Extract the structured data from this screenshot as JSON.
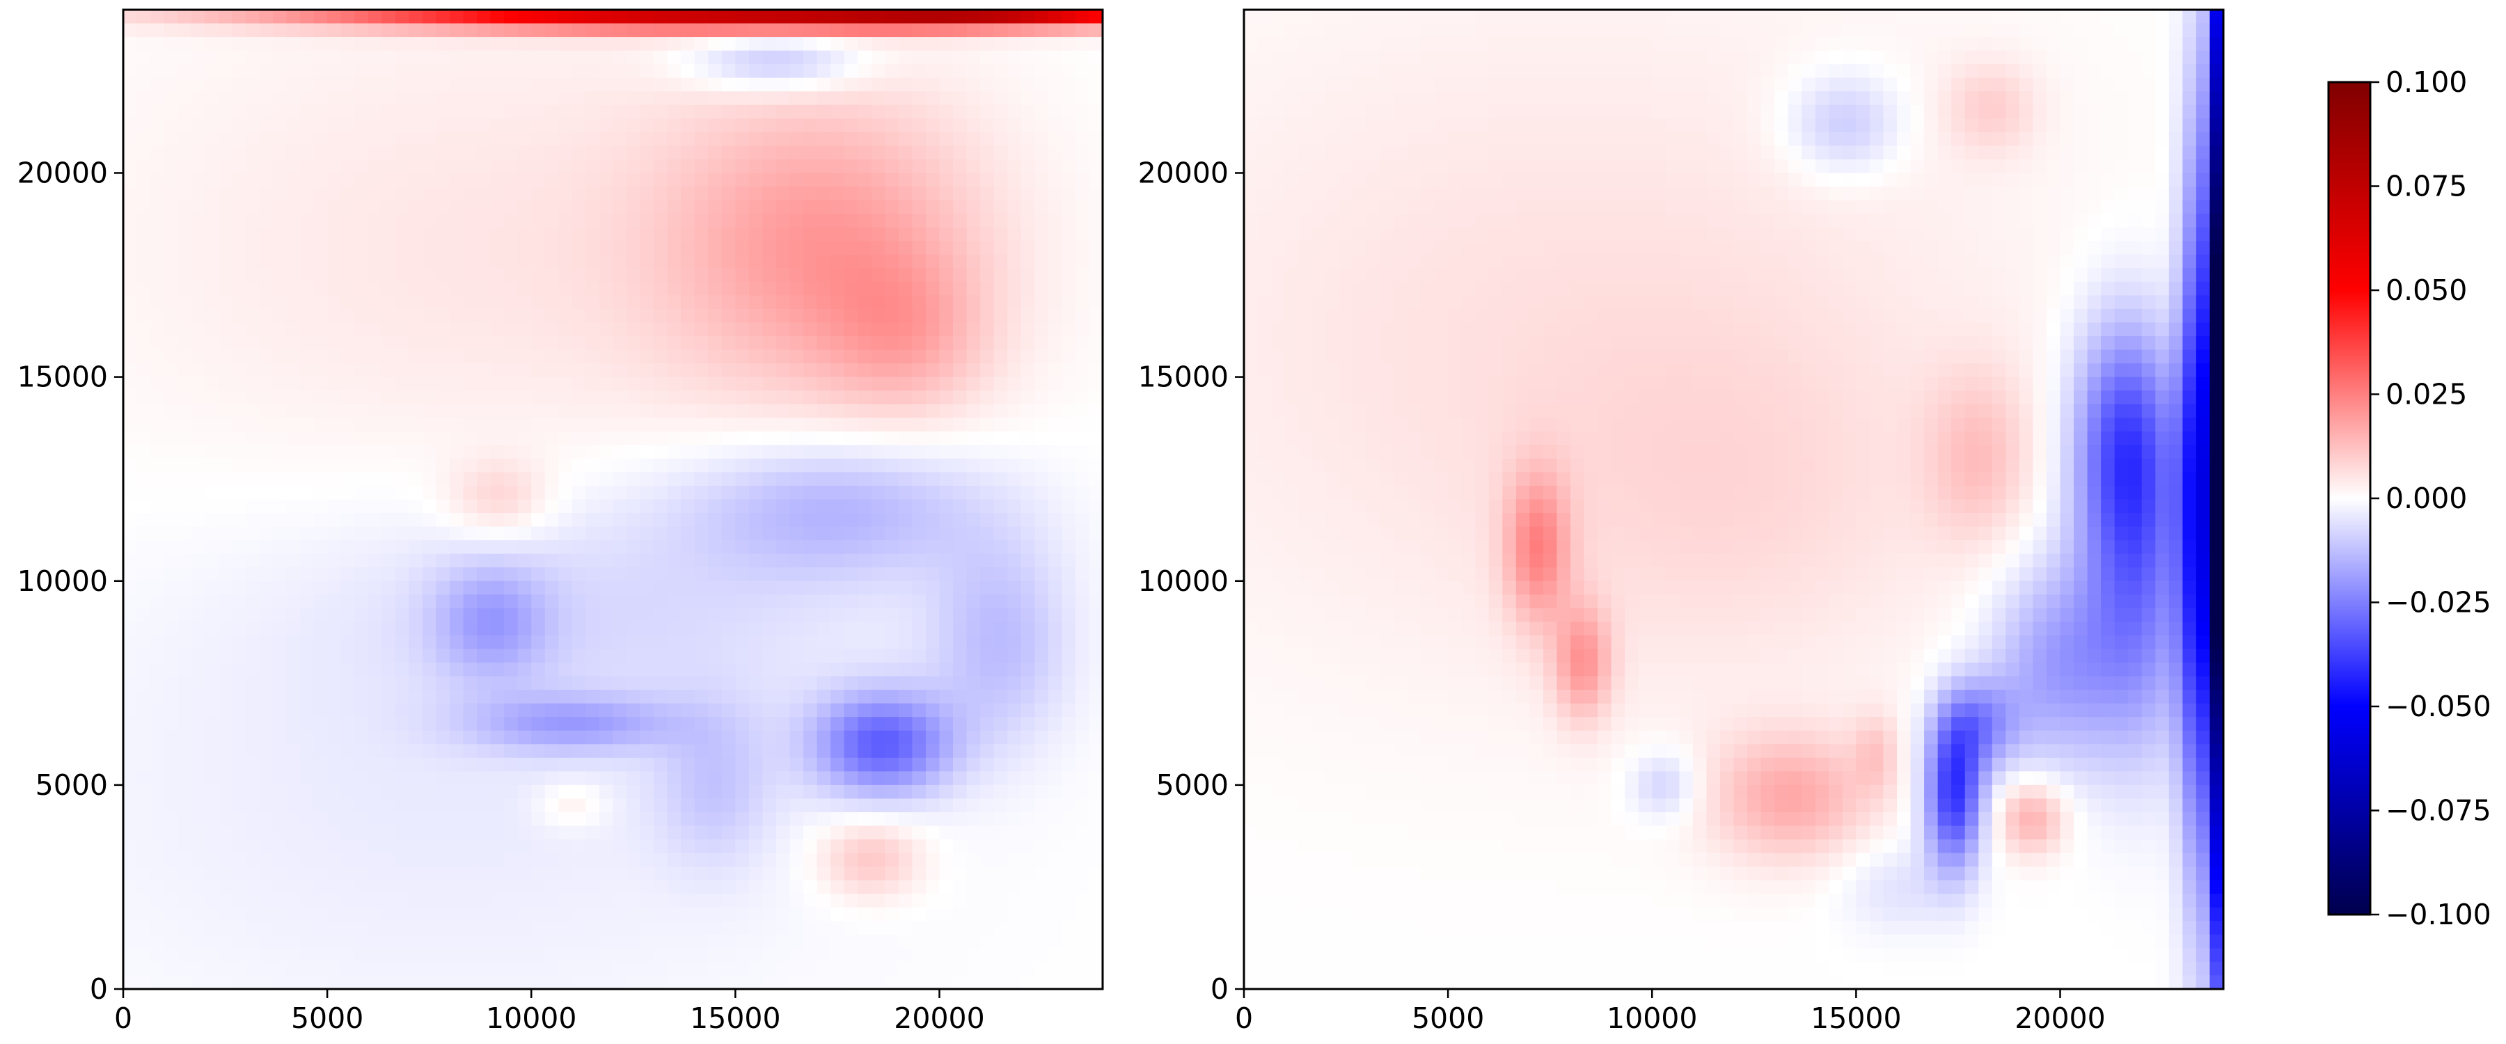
{
  "colors": {
    "colormap": "seismic",
    "stops": [
      "#00004d",
      "#0000ff",
      "#ffffff",
      "#ff0000",
      "#800000"
    ],
    "frame": "#000000",
    "background": "#ffffff"
  },
  "chart_data": [
    {
      "type": "heatmap",
      "title": "",
      "xlabel": "",
      "ylabel": "",
      "xlim": [
        0,
        24000
      ],
      "ylim": [
        0,
        24000
      ],
      "xticks": [
        "0",
        "5000",
        "10000",
        "15000",
        "20000"
      ],
      "yticks": [
        "0",
        "5000",
        "10000",
        "15000",
        "20000"
      ],
      "tick_values": [
        0,
        5000,
        10000,
        15000,
        20000
      ],
      "features": [
        {
          "x": 15500,
          "y": 23950,
          "sx": 7000,
          "sy": 300,
          "value": 0.075
        },
        {
          "x": 21500,
          "y": 23950,
          "sx": 2500,
          "sy": 220,
          "value": 0.03
        },
        {
          "x": 17200,
          "y": 18200,
          "sx": 2800,
          "sy": 2600,
          "value": 0.018
        },
        {
          "x": 19200,
          "y": 16000,
          "sx": 1400,
          "sy": 1400,
          "value": 0.01
        },
        {
          "x": 9000,
          "y": 18000,
          "sx": 6500,
          "sy": 4500,
          "value": 0.005
        },
        {
          "x": 9200,
          "y": 12000,
          "sx": 900,
          "sy": 700,
          "value": 0.009
        },
        {
          "x": 16000,
          "y": 22700,
          "sx": 1500,
          "sy": 500,
          "value": -0.014
        },
        {
          "x": 17500,
          "y": 11800,
          "sx": 2600,
          "sy": 1200,
          "value": -0.014
        },
        {
          "x": 9000,
          "y": 9000,
          "sx": 1000,
          "sy": 1000,
          "value": -0.014
        },
        {
          "x": 12000,
          "y": 9500,
          "sx": 5000,
          "sy": 2000,
          "value": -0.006
        },
        {
          "x": 11000,
          "y": 6500,
          "sx": 1800,
          "sy": 500,
          "value": -0.015
        },
        {
          "x": 14500,
          "y": 5000,
          "sx": 1000,
          "sy": 1400,
          "value": -0.009
        },
        {
          "x": 18600,
          "y": 6000,
          "sx": 1200,
          "sy": 900,
          "value": -0.03
        },
        {
          "x": 21500,
          "y": 8500,
          "sx": 1200,
          "sy": 1800,
          "value": -0.012
        },
        {
          "x": 8000,
          "y": 5000,
          "sx": 7000,
          "sy": 4500,
          "value": -0.004
        },
        {
          "x": 18300,
          "y": 3200,
          "sx": 900,
          "sy": 700,
          "value": 0.012
        },
        {
          "x": 11000,
          "y": 4500,
          "sx": 600,
          "sy": 400,
          "value": 0.006
        }
      ]
    },
    {
      "type": "heatmap",
      "title": "",
      "xlabel": "",
      "ylabel": "",
      "xlim": [
        0,
        24000
      ],
      "ylim": [
        0,
        24000
      ],
      "xticks": [
        "0",
        "5000",
        "10000",
        "15000",
        "20000"
      ],
      "yticks": [
        "0",
        "5000",
        "10000",
        "15000",
        "20000"
      ],
      "tick_values": [
        0,
        5000,
        10000,
        15000,
        20000
      ],
      "features": [
        {
          "x": 23850,
          "y": 14000,
          "sx": 160,
          "sy": 9000,
          "value": -0.095
        },
        {
          "x": 23400,
          "y": 12000,
          "sx": 350,
          "sy": 6500,
          "value": -0.045
        },
        {
          "x": 21600,
          "y": 13300,
          "sx": 900,
          "sy": 2200,
          "value": -0.035
        },
        {
          "x": 22000,
          "y": 9500,
          "sx": 900,
          "sy": 2800,
          "value": -0.02
        },
        {
          "x": 20000,
          "y": 8000,
          "sx": 1200,
          "sy": 1800,
          "value": -0.02
        },
        {
          "x": 17400,
          "y": 4800,
          "sx": 500,
          "sy": 1300,
          "value": -0.04
        },
        {
          "x": 18000,
          "y": 6500,
          "sx": 700,
          "sy": 800,
          "value": -0.02
        },
        {
          "x": 14700,
          "y": 21200,
          "sx": 1000,
          "sy": 900,
          "value": -0.012
        },
        {
          "x": 10300,
          "y": 5000,
          "sx": 600,
          "sy": 600,
          "value": -0.01
        },
        {
          "x": 16000,
          "y": 2500,
          "sx": 1000,
          "sy": 800,
          "value": -0.006
        },
        {
          "x": 7200,
          "y": 10800,
          "sx": 550,
          "sy": 1300,
          "value": 0.02
        },
        {
          "x": 8300,
          "y": 8000,
          "sx": 500,
          "sy": 1000,
          "value": 0.018
        },
        {
          "x": 13400,
          "y": 4700,
          "sx": 1400,
          "sy": 1100,
          "value": 0.016
        },
        {
          "x": 15500,
          "y": 5800,
          "sx": 400,
          "sy": 700,
          "value": 0.008
        },
        {
          "x": 19300,
          "y": 4200,
          "sx": 600,
          "sy": 650,
          "value": 0.016
        },
        {
          "x": 18000,
          "y": 13000,
          "sx": 900,
          "sy": 1500,
          "value": 0.01
        },
        {
          "x": 18300,
          "y": 21600,
          "sx": 800,
          "sy": 800,
          "value": 0.008
        },
        {
          "x": 8000,
          "y": 16000,
          "sx": 8000,
          "sy": 6000,
          "value": 0.006
        },
        {
          "x": 12000,
          "y": 12000,
          "sx": 3500,
          "sy": 3000,
          "value": 0.004
        }
      ]
    }
  ],
  "colorbar": {
    "vmin": -0.1,
    "vmax": 0.1,
    "ticks": [
      "0.100",
      "0.075",
      "0.050",
      "0.025",
      "0.000",
      "−0.025",
      "−0.050",
      "−0.075",
      "−0.100"
    ],
    "tick_values": [
      0.1,
      0.075,
      0.05,
      0.025,
      0,
      -0.025,
      -0.05,
      -0.075,
      -0.1
    ]
  }
}
